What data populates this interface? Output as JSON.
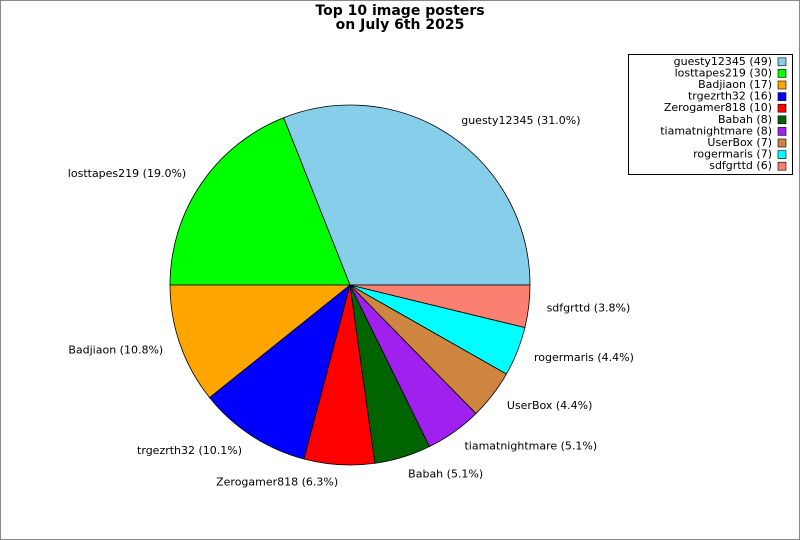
{
  "chart_data": {
    "type": "pie",
    "title": "Top 10 image posters",
    "subtitle": "on July 6th 2025",
    "values": [
      49,
      30,
      17,
      16,
      10,
      8,
      8,
      7,
      7,
      6
    ],
    "value_labels": [
      "guesty12345 (31.0%)",
      "losttapes219 (19.0%)",
      "Badjiaon (10.8%)",
      "trgezrth32 (10.1%)",
      "Zerogamer818 (6.3%)",
      "Babah (5.1%)",
      "tiamatnightmare (5.1%)",
      "UserBox (4.4%)",
      "rogermaris (4.4%)",
      "sdfgrttd (3.8%)"
    ],
    "legend_labels": [
      "guesty12345 (49)",
      "losttapes219 (30)",
      "Badjiaon (17)",
      "trgezrth32 (16)",
      "Zerogamer818 (10)",
      "Babah (8)",
      "tiamatnightmare (8)",
      "UserBox (7)",
      "rogermaris (7)",
      "sdfgrttd (6)"
    ],
    "colors": [
      "#87ceeb",
      "#00ff00",
      "#ffa500",
      "#0000ff",
      "#ff0000",
      "#006400",
      "#a020f0",
      "#cd853f",
      "#00ffff",
      "#fa8072"
    ],
    "legend": "upper right"
  }
}
